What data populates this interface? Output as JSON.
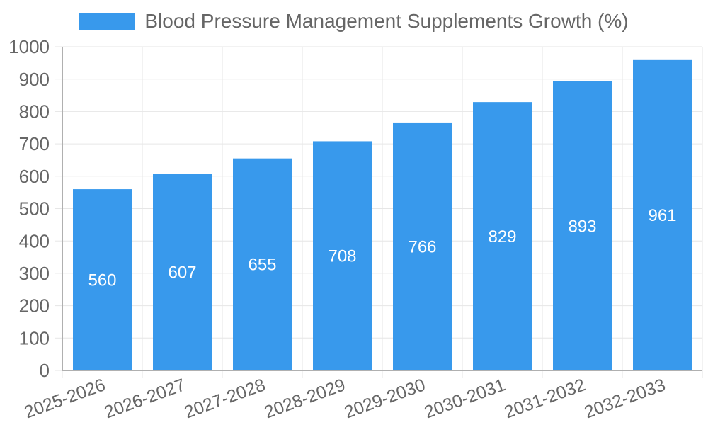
{
  "chart_data": {
    "type": "bar",
    "title": "Blood Pressure Management Supplements Growth (%)",
    "categories": [
      "2025-2026",
      "2026-2027",
      "2027-2028",
      "2028-2029",
      "2029-2030",
      "2030-2031",
      "2031-2032",
      "2032-2033"
    ],
    "values": [
      560,
      607,
      655,
      708,
      766,
      829,
      893,
      961
    ],
    "ylim": [
      0,
      1000
    ],
    "ytick_step": 100,
    "grid": true,
    "legend_position": "top",
    "value_labels_position": "center-of-bar",
    "colors": {
      "bar": "#3899ec",
      "tick_text": "#666666",
      "legend_text": "#666666",
      "grid": "#e6e6e6",
      "axis_line": "#b0b0b0",
      "value_text": "#ffffff",
      "background": "#ffffff"
    }
  }
}
